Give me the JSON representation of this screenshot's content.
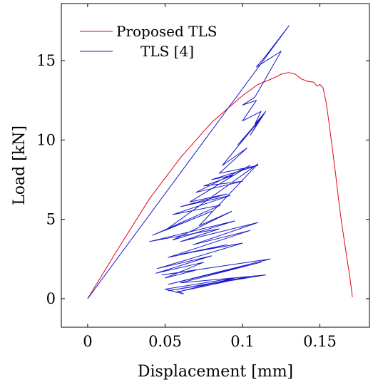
{
  "chart_data": {
    "type": "line",
    "title": "",
    "xlabel": "Displacement [mm]",
    "ylabel": "Load [kN]",
    "xlim": [
      -0.017,
      0.182
    ],
    "ylim": [
      -1.8,
      18.6
    ],
    "xticks": [
      0,
      0.05,
      0.1,
      0.15
    ],
    "xtick_labels": [
      "0",
      "0.05",
      "0.1",
      "0.15"
    ],
    "yticks": [
      0,
      5,
      10,
      15
    ],
    "ytick_labels": [
      "0",
      "5",
      "10",
      "15"
    ],
    "grid": false,
    "legend_position": "top-left",
    "series": [
      {
        "name": "Proposed TLS",
        "color": "#e8001c",
        "points": [
          [
            0.0,
            0.0
          ],
          [
            0.02,
            3.2
          ],
          [
            0.04,
            6.3
          ],
          [
            0.06,
            8.9
          ],
          [
            0.08,
            11.1
          ],
          [
            0.1,
            12.8
          ],
          [
            0.11,
            13.5
          ],
          [
            0.12,
            13.9
          ],
          [
            0.125,
            14.15
          ],
          [
            0.13,
            14.25
          ],
          [
            0.134,
            14.15
          ],
          [
            0.138,
            13.85
          ],
          [
            0.142,
            13.7
          ],
          [
            0.146,
            13.65
          ],
          [
            0.148,
            13.4
          ],
          [
            0.15,
            13.5
          ],
          [
            0.152,
            13.3
          ],
          [
            0.154,
            12.4
          ],
          [
            0.156,
            11.0
          ],
          [
            0.158,
            9.5
          ],
          [
            0.16,
            8.0
          ],
          [
            0.162,
            6.3
          ],
          [
            0.164,
            4.8
          ],
          [
            0.166,
            3.5
          ],
          [
            0.168,
            2.2
          ],
          [
            0.169,
            1.6
          ],
          [
            0.17,
            0.9
          ],
          [
            0.171,
            0.1
          ]
        ]
      },
      {
        "name": "TLS [4]",
        "color": "#1a1acc",
        "points": [
          [
            0.0,
            0.0
          ],
          [
            0.13,
            17.2
          ],
          [
            0.115,
            15.3
          ],
          [
            0.109,
            14.6
          ],
          [
            0.125,
            15.6
          ],
          [
            0.108,
            12.7
          ],
          [
            0.1,
            12.2
          ],
          [
            0.109,
            12.5
          ],
          [
            0.1,
            11.2
          ],
          [
            0.112,
            11.8
          ],
          [
            0.108,
            11.0
          ],
          [
            0.115,
            11.8
          ],
          [
            0.105,
            10.3
          ],
          [
            0.11,
            11.1
          ],
          [
            0.097,
            9.7
          ],
          [
            0.113,
            11.5
          ],
          [
            0.087,
            8.4
          ],
          [
            0.103,
            9.5
          ],
          [
            0.085,
            7.9
          ],
          [
            0.11,
            8.4
          ],
          [
            0.08,
            7.5
          ],
          [
            0.095,
            7.8
          ],
          [
            0.075,
            7.1
          ],
          [
            0.1,
            7.4
          ],
          [
            0.07,
            6.7
          ],
          [
            0.105,
            8.4
          ],
          [
            0.066,
            6.1
          ],
          [
            0.09,
            6.6
          ],
          [
            0.06,
            5.8
          ],
          [
            0.092,
            6.5
          ],
          [
            0.055,
            5.3
          ],
          [
            0.086,
            5.9
          ],
          [
            0.042,
            4.0
          ],
          [
            0.08,
            5.5
          ],
          [
            0.05,
            4.3
          ],
          [
            0.11,
            8.5
          ],
          [
            0.072,
            4.6
          ],
          [
            0.093,
            5.5
          ],
          [
            0.055,
            3.7
          ],
          [
            0.095,
            4.9
          ],
          [
            0.04,
            3.6
          ],
          [
            0.085,
            4.4
          ],
          [
            0.06,
            3.6
          ],
          [
            0.11,
            4.8
          ],
          [
            0.068,
            3.4
          ],
          [
            0.105,
            4.3
          ],
          [
            0.052,
            2.6
          ],
          [
            0.09,
            3.4
          ],
          [
            0.06,
            2.8
          ],
          [
            0.1,
            3.5
          ],
          [
            0.045,
            1.9
          ],
          [
            0.08,
            2.7
          ],
          [
            0.044,
            1.6
          ],
          [
            0.075,
            2.3
          ],
          [
            0.05,
            1.3
          ],
          [
            0.07,
            1.8
          ],
          [
            0.048,
            1.5
          ],
          [
            0.118,
            2.5
          ],
          [
            0.052,
            0.9
          ],
          [
            0.112,
            2.3
          ],
          [
            0.06,
            1.0
          ],
          [
            0.115,
            1.5
          ],
          [
            0.052,
            0.5
          ],
          [
            0.105,
            1.4
          ],
          [
            0.057,
            0.4
          ],
          [
            0.095,
            1.3
          ],
          [
            0.05,
            0.6
          ],
          [
            0.062,
            0.3
          ],
          [
            0.058,
            0.5
          ]
        ]
      }
    ]
  }
}
